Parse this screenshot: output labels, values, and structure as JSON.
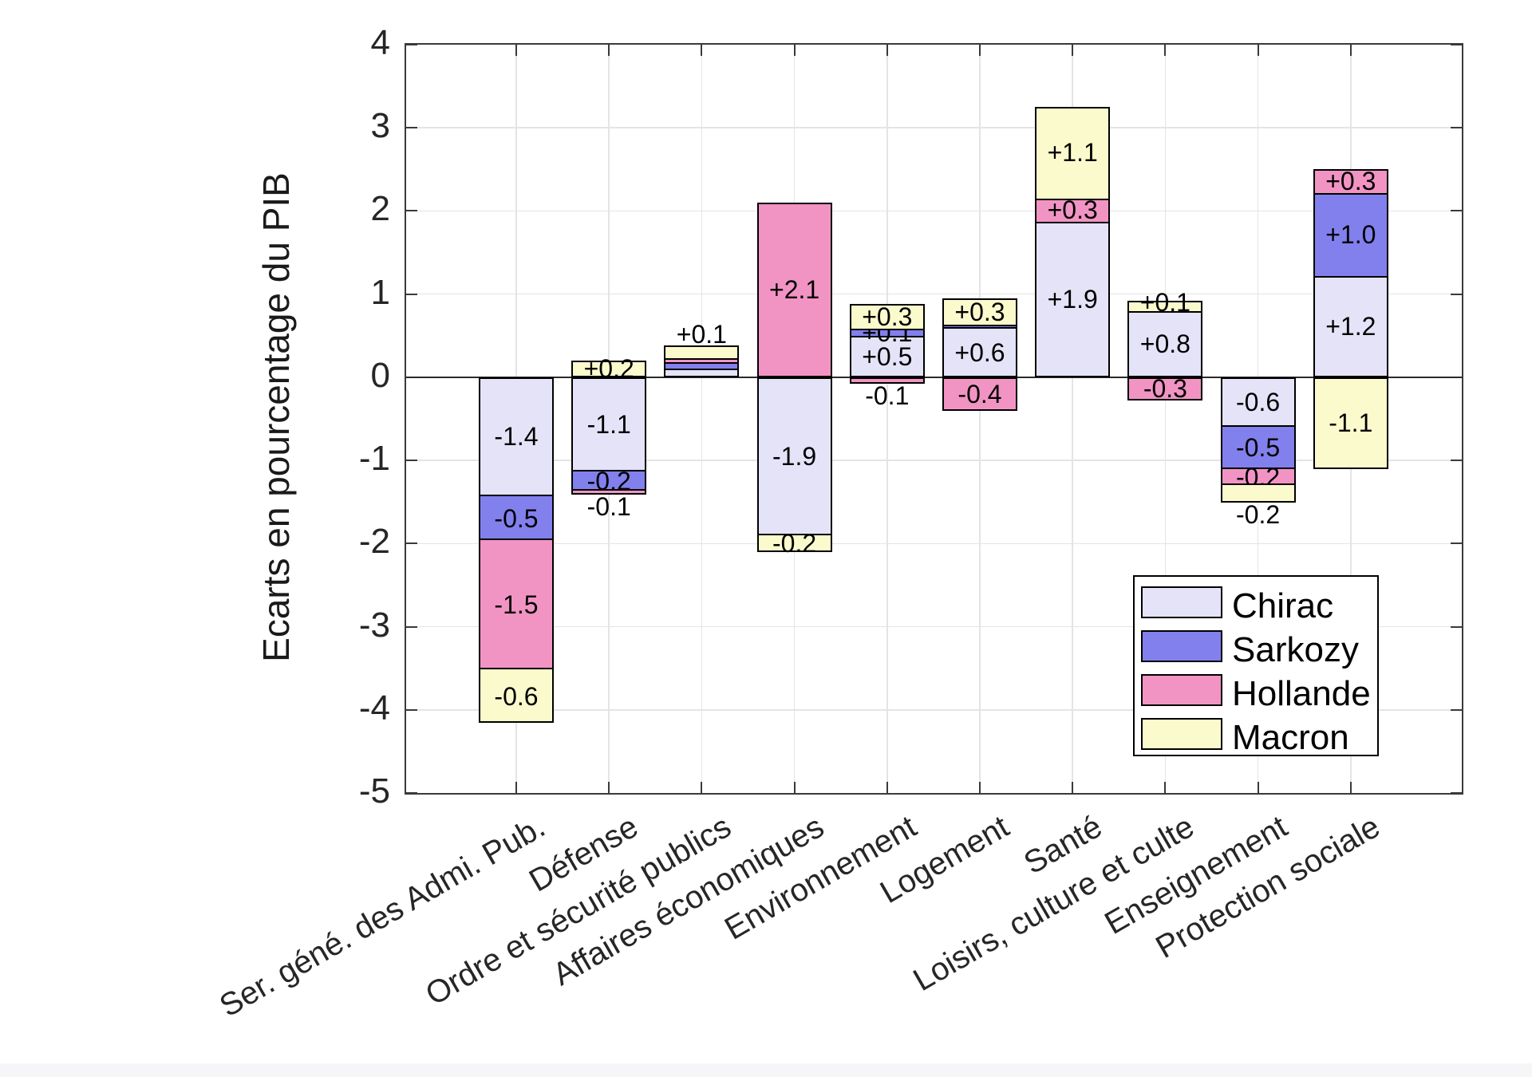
{
  "chart_data": {
    "type": "bar",
    "stacked": true,
    "title": "",
    "xlabel": "",
    "ylabel": "Ecarts en pourcentage du PIB",
    "ylim": [
      -5,
      4
    ],
    "yticks": [
      4,
      3,
      2,
      1,
      0,
      -1,
      -2,
      -3,
      -4,
      -5
    ],
    "grid": true,
    "background": "#ffffff",
    "axis_color": "#3a3a3a",
    "grid_color": "#e4e4e4",
    "bar_border_color": "#000000",
    "series": [
      {
        "name": "Chirac",
        "color": "#e4e3f8"
      },
      {
        "name": "Sarkozy",
        "color": "#8280ec"
      },
      {
        "name": "Hollande",
        "color": "#f194c4"
      },
      {
        "name": "Macron",
        "color": "#fbfacd"
      }
    ],
    "legend": {
      "position": "lower-right",
      "entries": [
        "Chirac",
        "Sarkozy",
        "Hollande",
        "Macron"
      ]
    },
    "categories": [
      "Ser. géné. des Admi. Pub.",
      "Défense",
      "Ordre et sécurité publics",
      "Affaires économiques",
      "Environnement",
      "Logement",
      "Santé",
      "Loisirs, culture et culte",
      "Enseignement",
      "Protection sociale"
    ],
    "bars": [
      {
        "category": "Ser. géné. des Admi. Pub.",
        "segments": [
          {
            "party": "Chirac",
            "value": -1.4,
            "size": -1.43,
            "label": "-1.4",
            "label_pos": "center"
          },
          {
            "party": "Sarkozy",
            "value": -0.5,
            "size": -0.53,
            "label": "-0.5",
            "label_pos": "center"
          },
          {
            "party": "Hollande",
            "value": -1.5,
            "size": -1.55,
            "label": "-1.5",
            "label_pos": "center"
          },
          {
            "party": "Macron",
            "value": -0.6,
            "size": -0.65,
            "label": "-0.6",
            "label_pos": "center"
          }
        ]
      },
      {
        "category": "Défense",
        "segments": [
          {
            "party": "Chirac",
            "value": -1.1,
            "size": -1.13,
            "label": "-1.1",
            "label_pos": "center"
          },
          {
            "party": "Sarkozy",
            "value": -0.2,
            "size": -0.23,
            "label": "-0.2",
            "label_pos": "center"
          },
          {
            "party": "Hollande",
            "value": -0.1,
            "size": -0.05,
            "label": "-0.1",
            "label_pos": "below"
          },
          {
            "party": "Macron",
            "value": 0.2,
            "size": 0.2,
            "label": "+0.2",
            "label_pos": "center"
          }
        ]
      },
      {
        "category": "Ordre et sécurité publics",
        "segments": [
          {
            "party": "Chirac",
            "value": 0.1,
            "size": 0.1,
            "label": null,
            "label_pos": "center"
          },
          {
            "party": "Sarkozy",
            "value": 0.1,
            "size": 0.08,
            "label": null,
            "label_pos": "center"
          },
          {
            "party": "Hollande",
            "value": 0.05,
            "size": 0.05,
            "label": null,
            "label_pos": "center"
          },
          {
            "party": "Macron",
            "value": 0.1,
            "size": 0.15,
            "label": "+0.1",
            "label_pos": "above"
          }
        ]
      },
      {
        "category": "Affaires économiques",
        "segments": [
          {
            "party": "Chirac",
            "value": -1.9,
            "size": -1.9,
            "label": "-1.9",
            "label_pos": "center"
          },
          {
            "party": "Hollande",
            "value": 2.1,
            "size": 2.1,
            "label": "+2.1",
            "label_pos": "center"
          },
          {
            "party": "Macron",
            "value": -0.2,
            "size": -0.2,
            "label": "-0.2",
            "label_pos": "center"
          }
        ]
      },
      {
        "category": "Environnement",
        "segments": [
          {
            "party": "Chirac",
            "value": 0.5,
            "size": 0.5,
            "label": "+0.5",
            "label_pos": "center"
          },
          {
            "party": "Sarkozy",
            "value": 0.1,
            "size": 0.08,
            "label": "+0.1",
            "label_pos": "center"
          },
          {
            "party": "Hollande",
            "value": -0.1,
            "size": -0.08,
            "label": "-0.1",
            "label_pos": "below"
          },
          {
            "party": "Macron",
            "value": 0.3,
            "size": 0.3,
            "label": "+0.3",
            "label_pos": "center"
          }
        ]
      },
      {
        "category": "Logement",
        "segments": [
          {
            "party": "Chirac",
            "value": 0.6,
            "size": 0.6,
            "label": "+0.6",
            "label_pos": "center"
          },
          {
            "party": "Sarkozy",
            "value": 0.0,
            "size": 0.03,
            "label": null,
            "label_pos": "center"
          },
          {
            "party": "Hollande",
            "value": -0.4,
            "size": -0.4,
            "label": "-0.4",
            "label_pos": "center"
          },
          {
            "party": "Macron",
            "value": 0.3,
            "size": 0.32,
            "label": "+0.3",
            "label_pos": "center"
          }
        ]
      },
      {
        "category": "Santé",
        "segments": [
          {
            "party": "Chirac",
            "value": 1.9,
            "size": 1.87,
            "label": "+1.9",
            "label_pos": "center"
          },
          {
            "party": "Hollande",
            "value": 0.3,
            "size": 0.28,
            "label": "+0.3",
            "label_pos": "center"
          },
          {
            "party": "Macron",
            "value": 1.1,
            "size": 1.1,
            "label": "+1.1",
            "label_pos": "center"
          }
        ]
      },
      {
        "category": "Loisirs, culture et culte",
        "segments": [
          {
            "party": "Chirac",
            "value": 0.8,
            "size": 0.8,
            "label": "+0.8",
            "label_pos": "center"
          },
          {
            "party": "Hollande",
            "value": -0.3,
            "size": -0.28,
            "label": "-0.3",
            "label_pos": "center"
          },
          {
            "party": "Macron",
            "value": 0.1,
            "size": 0.12,
            "label": "+0.1",
            "label_pos": "top"
          }
        ]
      },
      {
        "category": "Enseignement",
        "segments": [
          {
            "party": "Chirac",
            "value": -0.6,
            "size": -0.6,
            "label": "-0.6",
            "label_pos": "center"
          },
          {
            "party": "Sarkozy",
            "value": -0.5,
            "size": -0.5,
            "label": "-0.5",
            "label_pos": "center"
          },
          {
            "party": "Hollande",
            "value": -0.2,
            "size": -0.2,
            "label": "-0.2",
            "label_pos": "center"
          },
          {
            "party": "Macron",
            "value": -0.2,
            "size": -0.21,
            "label": "-0.2",
            "label_pos": "below"
          }
        ]
      },
      {
        "category": "Protection sociale",
        "segments": [
          {
            "party": "Chirac",
            "value": 1.2,
            "size": 1.22,
            "label": "+1.2",
            "label_pos": "center"
          },
          {
            "party": "Sarkozy",
            "value": 1.0,
            "size": 1.0,
            "label": "+1.0",
            "label_pos": "center"
          },
          {
            "party": "Hollande",
            "value": 0.3,
            "size": 0.28,
            "label": "+0.3",
            "label_pos": "center"
          },
          {
            "party": "Macron",
            "value": -1.1,
            "size": -1.1,
            "label": "-1.1",
            "label_pos": "center"
          }
        ]
      }
    ]
  }
}
